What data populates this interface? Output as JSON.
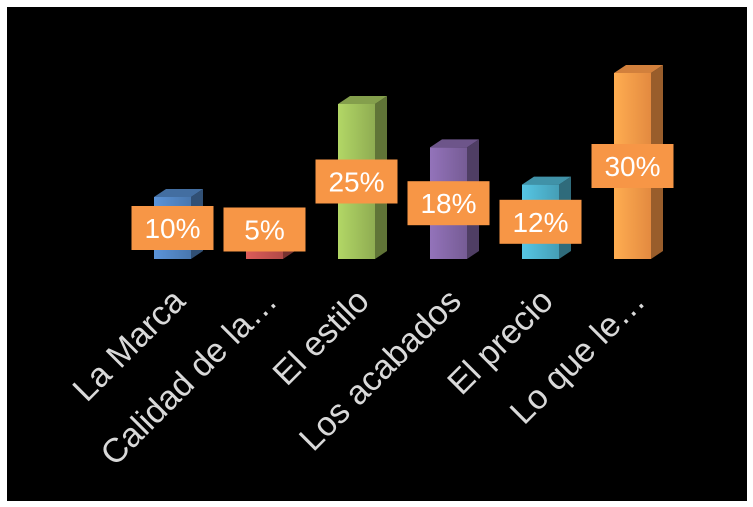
{
  "chart_data": {
    "type": "bar",
    "categories": [
      "La Marca",
      "Calidad de la…",
      "El estilo",
      "Los acabados",
      "El precio",
      "Lo que le…"
    ],
    "values": [
      10,
      5,
      25,
      18,
      12,
      30
    ],
    "data_labels": [
      "10%",
      "5%",
      "25%",
      "18%",
      "12%",
      "30%"
    ],
    "unit": "%",
    "ylim": [
      0,
      30
    ],
    "grid": false,
    "legend": "none",
    "colors": {
      "bars": [
        "#4f81bd",
        "#c0504d",
        "#9bbb59",
        "#8064a2",
        "#4bacc6",
        "#f79646"
      ],
      "label_box": "#f79646",
      "background": "#000000",
      "tick_text": "#d9d9d9",
      "label_text": "#ffffff"
    }
  }
}
